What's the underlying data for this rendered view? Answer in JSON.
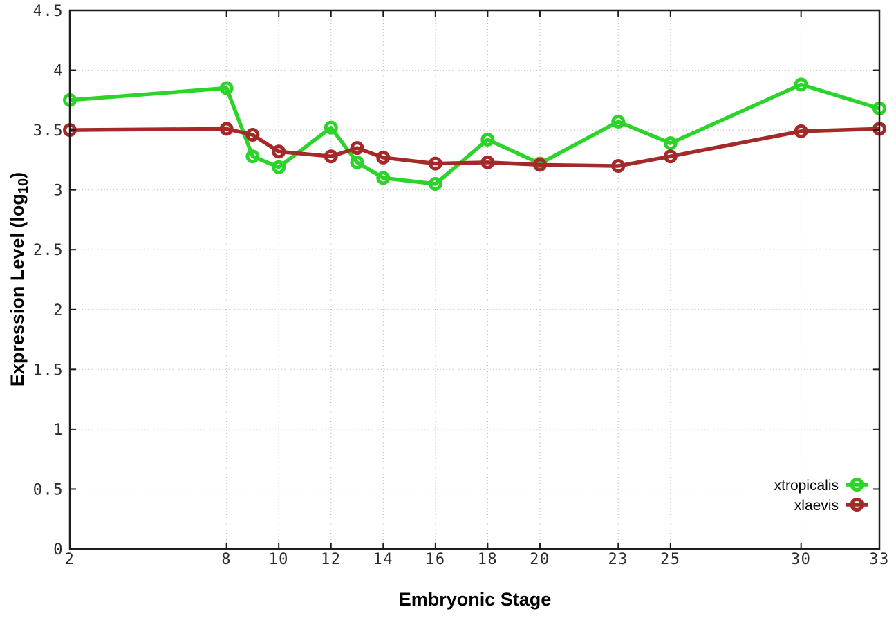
{
  "chart_data": {
    "type": "line",
    "title": "",
    "xlabel": "Embryonic Stage",
    "ylabel": "Expression Level (log10)",
    "ylabel_display": {
      "main": "Expression Level (log",
      "sub": "10",
      "end": ")"
    },
    "xlim": [
      2,
      33
    ],
    "ylim": [
      0,
      4.5
    ],
    "grid": true,
    "legend_position": "bottom-right-inside",
    "x_ticks": [
      2,
      8,
      10,
      12,
      14,
      16,
      18,
      20,
      23,
      25,
      30,
      33
    ],
    "x_tick_labels": [
      "2",
      "8",
      "10",
      "12",
      "14",
      "16",
      "18",
      "20",
      "23",
      "25",
      "30",
      "33"
    ],
    "y_ticks": [
      0,
      0.5,
      1,
      1.5,
      2,
      2.5,
      3,
      3.5,
      4,
      4.5
    ],
    "y_tick_labels": [
      "0",
      "0.5",
      "1",
      "1.5",
      "2",
      "2.5",
      "3",
      "3.5",
      "4",
      "4.5"
    ],
    "x": [
      2,
      8,
      9,
      10,
      12,
      13,
      14,
      16,
      18,
      20,
      23,
      25,
      30,
      33
    ],
    "series": [
      {
        "name": "xtropicalis",
        "color": "#2bd32b",
        "values": [
          3.75,
          3.85,
          3.28,
          3.19,
          3.52,
          3.23,
          3.1,
          3.05,
          3.42,
          3.22,
          3.57,
          3.39,
          3.88,
          3.68
        ]
      },
      {
        "name": "xlaevis",
        "color": "#a42a2a",
        "values": [
          3.5,
          3.51,
          3.46,
          3.32,
          3.28,
          3.35,
          3.27,
          3.22,
          3.23,
          3.21,
          3.2,
          3.28,
          3.49,
          3.51
        ]
      }
    ],
    "style": {
      "border_color": "#1c1c1c",
      "grid_color": "#bbbbbb",
      "background": "#ffffff"
    }
  }
}
